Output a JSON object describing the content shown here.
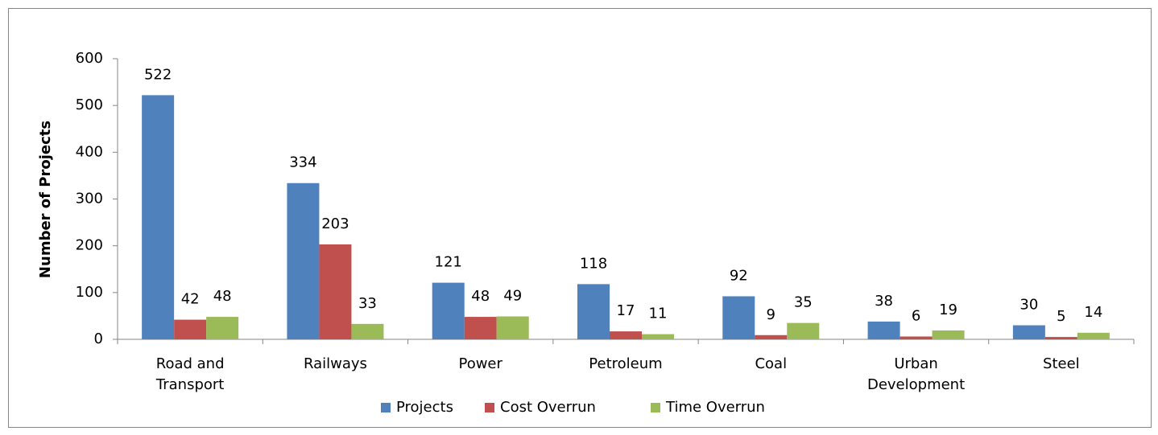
{
  "chart_data": {
    "type": "bar",
    "y_label": "Number of Projects",
    "categories": [
      "Road and Transport",
      "Railways",
      "Power",
      "Petroleum",
      "Coal",
      "Urban Development",
      "Steel"
    ],
    "series": [
      {
        "name": "Projects",
        "color": "#4f81bd",
        "values": [
          522,
          334,
          121,
          118,
          92,
          38,
          30
        ]
      },
      {
        "name": "Cost Overrun",
        "color": "#c0504d",
        "values": [
          42,
          203,
          48,
          17,
          9,
          6,
          5
        ]
      },
      {
        "name": "Time Overrun",
        "color": "#9bbb59",
        "values": [
          48,
          33,
          49,
          11,
          35,
          19,
          14
        ]
      }
    ],
    "ylim": [
      0,
      600
    ],
    "yticks": [
      0,
      100,
      200,
      300,
      400,
      500,
      600
    ],
    "grid": false,
    "legend": "bottom"
  }
}
